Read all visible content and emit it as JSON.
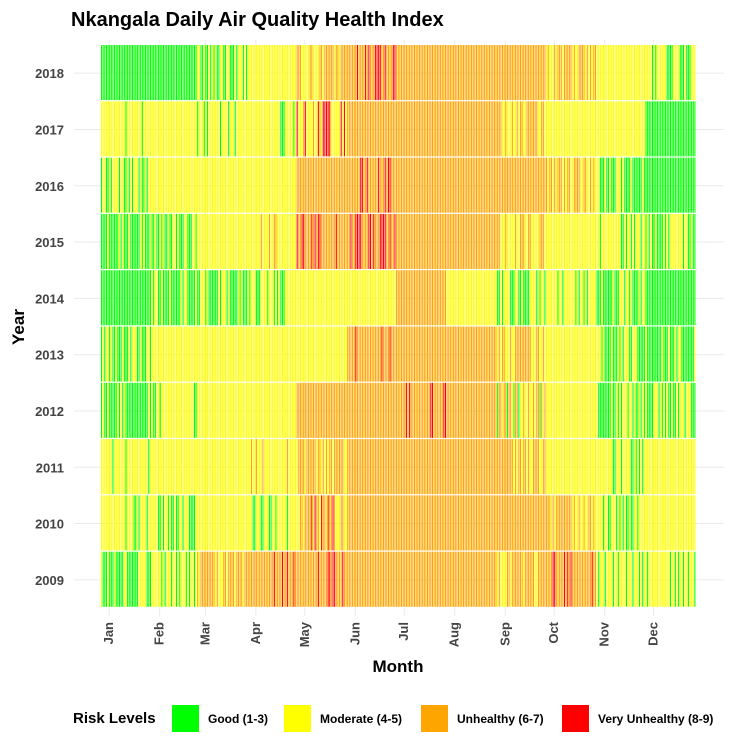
{
  "chart_data": {
    "type": "heatmap",
    "title": "Nkangala Daily Air Quality Health Index",
    "xlabel": "Month",
    "ylabel": "Year",
    "x_ticks": [
      "Jan",
      "Feb",
      "Mar",
      "Apr",
      "May",
      "Jun",
      "Jul",
      "Aug",
      "Sep",
      "Oct",
      "Nov",
      "Dec"
    ],
    "y_ticks": [
      "2009",
      "2010",
      "2011",
      "2012",
      "2013",
      "2014",
      "2015",
      "2016",
      "2017",
      "2018"
    ],
    "x_range": [
      1,
      365
    ],
    "grid": true,
    "legend": {
      "title": "Risk Levels",
      "position": "bottom",
      "levels": [
        {
          "label": "Good (1-3)",
          "color": "#00FF00"
        },
        {
          "label": "Moderate (4-5)",
          "color": "#FFFF00"
        },
        {
          "label": "Unhealthy (6-7)",
          "color": "#FFA500"
        },
        {
          "label": "Very Unhealthy (8-9)",
          "color": "#FF0000"
        }
      ]
    },
    "monthly_mix": {
      "2009": [
        "GGGGGMMMMM",
        "MGGMMMMMMG",
        "MMMMUUUMUU",
        "UUUUVUUUUU",
        "UUUUUUUUVU",
        "UUUUUUUUUV",
        "UUUUUUUUUU",
        "UUUUUUUUUU",
        "MUUUUUMUUU",
        "UUUUUUUUVM",
        "MMMMMMMGGM",
        "GMMMMMMMMM"
      ],
      "2010": [
        "MMMMMGGMMM",
        "MGGMGMMMMM",
        "MMMMMMMMMG",
        "MMMMGGGMMM",
        "MMMMUUUUVU",
        "UUUUUUUUUU",
        "UUUUUVUUUU",
        "UUUUUUUUUU",
        "UUUUUUUUUU",
        "MMUUUMMUUU",
        "MMGGGMMMMM",
        "MMMMMMMMMM"
      ],
      "2011": [
        "MMGGMMMMMM",
        "MMMMMMMMMM",
        "MMMMMMMMMM",
        "MMMMMMMUUM",
        "UUUMMUUUUU",
        "UUUUUUUVUU",
        "UUUUUUUUUU",
        "UUUUUUUUUU",
        "UMMMMMUUUM",
        "MMMMMMMMMM",
        "GGMMMGGMMM",
        "MMMMMMMMMM"
      ],
      "2012": [
        "GGGGGMMGGG",
        "GMMMMMMMMM",
        "MMMMMMMMMM",
        "MMMMMMMMMU",
        "UUUUUUUUUU",
        "UUUUUUUUUU",
        "UUUUVUUUUU",
        "UUUUUUUUUU",
        "MGGUUUUUUU",
        "MMMMMMMMMM",
        "MMGGMMGGGG",
        "GGGGMMMGGG"
      ],
      "2013": [
        "GGGGMMMGGG",
        "MMMMMMMMMM",
        "MMMMMMMMMM",
        "MMMMMMMMMM",
        "MMMMMMMMMM",
        "UUUUVUUUUU",
        "UUUUUUUUUU",
        "UUUUUUUUUU",
        "MMMMUUUMMM",
        "MMMMMMMMMM",
        "MGGMGGMMMM",
        "GGGMMMGGGG"
      ],
      "2014": [
        "GGGGGGGMGG",
        "GGGGMMMGGG",
        "GGGGGGMGMG",
        "GGGGMMMMMM",
        "MMMMMMMMMM",
        "MMMMMMMMMM",
        "UUUUUUUUUU",
        "MMMMMMMGMG",
        "GGGMMMMMGG",
        "MMMGGGMMMM",
        "GGGGGGGGMG",
        "GGGGGGGGGG"
      ],
      "2015": [
        "GGGGGMMGGG",
        "GGGGMMMGGG",
        "MMMMMMMMMM",
        "MMMMMMMMUU",
        "UUUUUVVVUU",
        "UUUUVVVUUU",
        "UUUUUVUUUU",
        "UUUUUUUUUU",
        "MMMMUUUMMM",
        "MMMMMMMMMM",
        "GGMMMMMMMM",
        "MMMMGGGMMM"
      ],
      "2016": [
        "GMMGGGMMMM",
        "MMMMMGMMMM",
        "MMMMMMMMMM",
        "MMMMMMMMMU",
        "UUUUUUUUUU",
        "UUUUVVUUUU",
        "UUUVUUUUUU",
        "UUUUUUUUUU",
        "UUUUUUUUUU",
        "MUUUUMMMMM",
        "GGMMMGGGGG",
        "GGGGGGGGGG"
      ],
      "2017": [
        "MMMMGGMMMM",
        "MMMMMMMMMM",
        "MMMGGMMMMM",
        "GMMMMMMMMM",
        "MMMMMUVVUU",
        "UUUUUUUVUU",
        "UUUUUUUUUU",
        "UUUUUUUUUU",
        "MMMMUUUUUU",
        "MMMMMMMMMM",
        "MMMMMMMMMM",
        "GGGGGGGGGG"
      ],
      "2018": [
        "GGGGGGGGGG",
        "GGGGGGGGGG",
        "GGGGGMMMMM",
        "MMMMMMMMMM",
        "MMMMUUUUUU",
        "UUUUVVUUUU",
        "UUUUUUUUUU",
        "UUUUUUUUUU",
        "UUUUUUUUUU",
        "MMUUUUUUMM",
        "MMMMMMMMMM",
        "MMMMMMGGGG"
      ]
    }
  }
}
